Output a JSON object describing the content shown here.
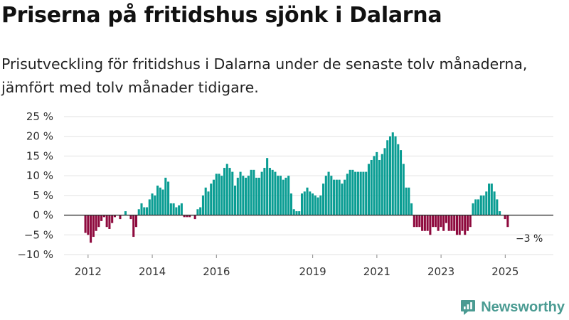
{
  "title": "Priserna på fritidshus sjönk i Dalarna",
  "subtitle": "Prisutveckling för fritidshus i Dalarna under de senaste tolv månaderna, jämfört med tolv månader tidigare.",
  "brand": {
    "name": "Newsworthy",
    "icon": "newsworthy-logo-icon"
  },
  "colors": {
    "positive": "#0a9d93",
    "negative": "#8e0a3e",
    "grid": "#e2e2e2",
    "zero_line": "#333333",
    "brand": "#4a9b92"
  },
  "chart_data": {
    "type": "bar",
    "title": "Priserna på fritidshus sjönk i Dalarna",
    "xlabel": "",
    "ylabel": "",
    "x_range": [
      2011.25,
      2026.5
    ],
    "ylim": [
      -10,
      25
    ],
    "yticks": [
      25,
      20,
      15,
      10,
      5,
      0,
      -5,
      -10
    ],
    "ytick_labels": [
      "25 %",
      "20 %",
      "15 %",
      "10 %",
      "5 %",
      "0 %",
      "−5 %",
      "−10 %"
    ],
    "xticks": [
      2012,
      2014,
      2016,
      2019,
      2021,
      2023,
      2025
    ],
    "xtick_labels": [
      "2012",
      "2014",
      "2016",
      "2019",
      "2021",
      "2023",
      "2025"
    ],
    "grid": true,
    "start": 2011.917,
    "step": 0.0833,
    "values": [
      -4.5,
      -5,
      -7,
      -5.5,
      -4,
      -3,
      -1.5,
      -0.5,
      -3,
      -3.5,
      -2,
      -0.5,
      0,
      -1,
      0,
      1,
      0,
      -1,
      -5.5,
      -3,
      1.5,
      3,
      2,
      2,
      4,
      5.5,
      5,
      7.5,
      7,
      6.5,
      9.5,
      8.5,
      3,
      3,
      2,
      2.5,
      3,
      -0.5,
      -0.5,
      -0.5,
      0,
      -1,
      1.5,
      2,
      5,
      7,
      6,
      8,
      9,
      10.5,
      10.5,
      10,
      12,
      13,
      12,
      11,
      7.5,
      9.5,
      11,
      10,
      9.5,
      10,
      11.5,
      11.5,
      9.5,
      9.5,
      11,
      12,
      14.5,
      12,
      11.5,
      11,
      10,
      10,
      9,
      9.5,
      10,
      5.5,
      1.5,
      1,
      1,
      5.5,
      6,
      7,
      6,
      5.5,
      5,
      4.5,
      5,
      8,
      10,
      11,
      10,
      9,
      9,
      9,
      8,
      9,
      10.5,
      11.5,
      11.5,
      11,
      11,
      11,
      11,
      11,
      13,
      14,
      15,
      16,
      14,
      15.5,
      17,
      19,
      20,
      21,
      20,
      18,
      16.5,
      13,
      7,
      7,
      3,
      -3,
      -3,
      -3,
      -4,
      -4,
      -4,
      -5,
      -3,
      -3,
      -4,
      -3,
      -4,
      -2,
      -4,
      -4,
      -4,
      -5,
      -5,
      -4,
      -5,
      -4,
      -3,
      3,
      4,
      4,
      5,
      5,
      6,
      8,
      8,
      6,
      4,
      1,
      0,
      -1,
      -3
    ],
    "annotations": [
      {
        "text": "−3 %",
        "x": 2025.75,
        "y": -3
      }
    ]
  }
}
